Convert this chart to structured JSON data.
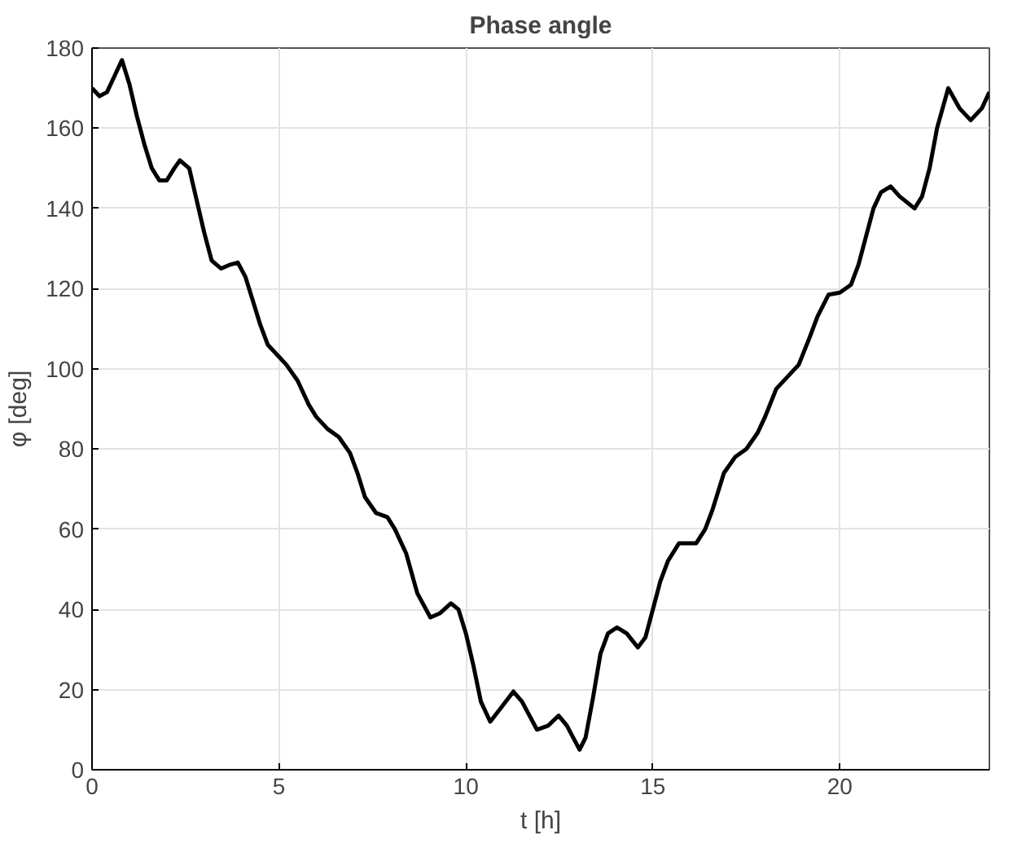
{
  "chart_data": {
    "type": "line",
    "title": "Phase angle",
    "xlabel": "t [h]",
    "ylabel": "φ [deg]",
    "xlim": [
      0,
      24
    ],
    "ylim": [
      0,
      180
    ],
    "xticks": [
      0,
      5,
      10,
      15,
      20
    ],
    "yticks": [
      0,
      20,
      40,
      60,
      80,
      100,
      120,
      140,
      160,
      180
    ],
    "grid": true,
    "line_style": "solid",
    "series": [
      {
        "color": "#000000",
        "x": [
          0,
          0.2,
          0.4,
          0.6,
          0.8,
          1.0,
          1.2,
          1.4,
          1.6,
          1.8,
          2.0,
          2.2,
          2.35,
          2.6,
          2.8,
          3.0,
          3.2,
          3.45,
          3.7,
          3.9,
          4.1,
          4.3,
          4.5,
          4.7,
          5.0,
          5.2,
          5.5,
          5.8,
          6.0,
          6.3,
          6.6,
          6.9,
          7.1,
          7.3,
          7.6,
          7.9,
          8.1,
          8.4,
          8.7,
          9.05,
          9.3,
          9.6,
          9.8,
          10.0,
          10.2,
          10.4,
          10.65,
          10.9,
          11.27,
          11.5,
          11.9,
          12.2,
          12.48,
          12.7,
          13.04,
          13.2,
          13.4,
          13.6,
          13.8,
          14.04,
          14.3,
          14.6,
          14.8,
          15.0,
          15.2,
          15.4,
          15.7,
          16.16,
          16.4,
          16.6,
          16.9,
          17.2,
          17.5,
          17.8,
          18.0,
          18.3,
          18.6,
          18.9,
          19.2,
          19.4,
          19.7,
          20.0,
          20.3,
          20.5,
          20.7,
          20.9,
          21.1,
          21.36,
          21.6,
          22.0,
          22.2,
          22.4,
          22.6,
          22.9,
          23.2,
          23.5,
          23.8,
          24.0
        ],
        "values": [
          170,
          168,
          169,
          173,
          177,
          171,
          163,
          156,
          150,
          147,
          147,
          150,
          152,
          150,
          142,
          134,
          127,
          125,
          126,
          126.5,
          123,
          117,
          111,
          106,
          103,
          101,
          97,
          91,
          88,
          85,
          83,
          79,
          74,
          68,
          64,
          63,
          60,
          54,
          44,
          38,
          39,
          41.5,
          40,
          34,
          26,
          17,
          12,
          15,
          19.5,
          17,
          10,
          11,
          13.5,
          11,
          5,
          8,
          18,
          29,
          34,
          35.5,
          34,
          30.5,
          33,
          40,
          47,
          52,
          56.5,
          56.5,
          60,
          65,
          74,
          78,
          80,
          84,
          88,
          95,
          98,
          101,
          108,
          113,
          118.5,
          119,
          121,
          126,
          133,
          140,
          144,
          145.5,
          143,
          140,
          143,
          150,
          160,
          170,
          165,
          162,
          165,
          169
        ]
      }
    ]
  }
}
